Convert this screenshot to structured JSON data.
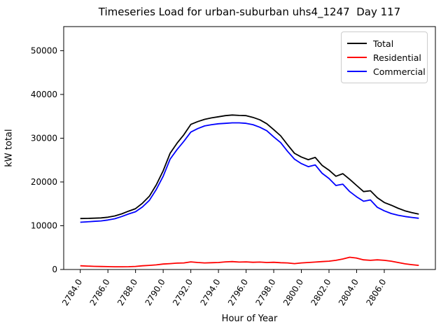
{
  "figure": {
    "title": "Timeseries Load for urban-suburban uhs4_1247  Day 117",
    "xlabel": "Hour of Year",
    "ylabel": "kW total"
  },
  "chart_data": {
    "type": "line",
    "title": "Timeseries Load for urban-suburban uhs4_1247  Day 117",
    "xlabel": "Hour of Year",
    "ylabel": "kW total",
    "grid": false,
    "legend_position": "upper right",
    "xlim": [
      2782.8,
      2809.7
    ],
    "ylim": [
      0,
      55500
    ],
    "xtick_labels": [
      "2784.0",
      "2786.0",
      "2788.0",
      "2790.0",
      "2792.0",
      "2794.0",
      "2796.0",
      "2798.0",
      "2800.0",
      "2802.0",
      "2804.0",
      "2806.0"
    ],
    "xtick_values": [
      2784,
      2786,
      2788,
      2790,
      2792,
      2794,
      2796,
      2798,
      2800,
      2802,
      2804,
      2806
    ],
    "ytick_labels": [
      "0",
      "10000",
      "20000",
      "30000",
      "40000",
      "50000"
    ],
    "ytick_values": [
      0,
      10000,
      20000,
      30000,
      40000,
      50000
    ],
    "x": [
      2784.0,
      2784.5,
      2785.0,
      2785.5,
      2786.0,
      2786.5,
      2787.0,
      2787.5,
      2788.0,
      2788.5,
      2789.0,
      2789.5,
      2790.0,
      2790.5,
      2791.0,
      2791.5,
      2792.0,
      2792.5,
      2793.0,
      2793.5,
      2794.0,
      2794.5,
      2795.0,
      2795.5,
      2796.0,
      2796.5,
      2797.0,
      2797.5,
      2798.0,
      2798.5,
      2799.0,
      2799.5,
      2800.0,
      2800.5,
      2801.0,
      2801.5,
      2802.0,
      2802.5,
      2803.0,
      2803.5,
      2804.0,
      2804.5,
      2805.0,
      2805.5,
      2806.0,
      2806.5,
      2807.0,
      2807.5,
      2808.0,
      2808.5
    ],
    "series": [
      {
        "name": "Total",
        "color": "#000000",
        "values": [
          11650,
          11680,
          11720,
          11780,
          11950,
          12230,
          12720,
          13340,
          13900,
          15150,
          16750,
          19350,
          22550,
          26550,
          28850,
          30800,
          33150,
          33800,
          34300,
          34650,
          34900,
          35150,
          35300,
          35200,
          35150,
          34750,
          34200,
          33300,
          31950,
          30550,
          28500,
          26550,
          25700,
          25100,
          25600,
          23800,
          22700,
          21300,
          21900,
          20600,
          19200,
          17800,
          18000,
          16400,
          15300,
          14700,
          14000,
          13400,
          13000,
          12650
        ]
      },
      {
        "name": "Residential",
        "color": "#ff0000",
        "values": [
          850,
          780,
          720,
          680,
          650,
          630,
          620,
          640,
          700,
          850,
          950,
          1050,
          1250,
          1350,
          1450,
          1500,
          1750,
          1600,
          1500,
          1550,
          1600,
          1750,
          1800,
          1700,
          1750,
          1650,
          1700,
          1600,
          1650,
          1550,
          1500,
          1350,
          1500,
          1600,
          1700,
          1800,
          1900,
          2100,
          2400,
          2800,
          2600,
          2200,
          2100,
          2200,
          2100,
          1900,
          1600,
          1300,
          1100,
          950
        ]
      },
      {
        "name": "Commercial",
        "color": "#0000ff",
        "values": [
          10800,
          10900,
          11000,
          11100,
          11300,
          11600,
          12100,
          12700,
          13200,
          14300,
          15800,
          18300,
          21300,
          25200,
          27400,
          29300,
          31400,
          32200,
          32800,
          33100,
          33300,
          33400,
          33500,
          33500,
          33400,
          33100,
          32500,
          31700,
          30300,
          29000,
          27000,
          25200,
          24200,
          23500,
          23900,
          22000,
          20800,
          19200,
          19500,
          17800,
          16600,
          15600,
          15900,
          14200,
          13400,
          12800,
          12400,
          12100,
          11900,
          11700
        ]
      }
    ]
  }
}
